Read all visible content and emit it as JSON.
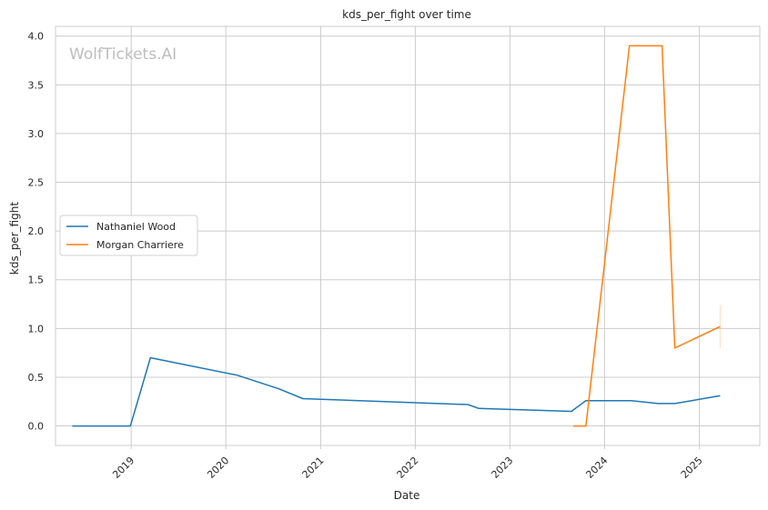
{
  "chart_data": {
    "type": "line",
    "title": "kds_per_fight over time",
    "xlabel": "Date",
    "ylabel": "kds_per_fight",
    "watermark": "WolfTickets.AI",
    "x_ticks": [
      "2019",
      "2020",
      "2021",
      "2022",
      "2023",
      "2024",
      "2025"
    ],
    "y_ticks": [
      "0.0",
      "0.5",
      "1.0",
      "1.5",
      "2.0",
      "2.5",
      "3.0",
      "3.5",
      "4.0"
    ],
    "xlim": [
      "2018-03-15",
      "2025-08-22"
    ],
    "ylim": [
      -0.2,
      4.1
    ],
    "grid": true,
    "legend_position": "center-left",
    "series": [
      {
        "name": "Nathaniel Wood",
        "color": "#1f77b4",
        "points": [
          {
            "x": "2018-05-19",
            "y": 0.0
          },
          {
            "x": "2018-12-29",
            "y": 0.0
          },
          {
            "x": "2019-03-16",
            "y": 0.7
          },
          {
            "x": "2020-02-15",
            "y": 0.52
          },
          {
            "x": "2020-07-25",
            "y": 0.38
          },
          {
            "x": "2020-10-24",
            "y": 0.28
          },
          {
            "x": "2022-07-23",
            "y": 0.22
          },
          {
            "x": "2022-09-03",
            "y": 0.18
          },
          {
            "x": "2023-08-26",
            "y": 0.15
          },
          {
            "x": "2023-10-21",
            "y": 0.26
          },
          {
            "x": "2024-04-13",
            "y": 0.26
          },
          {
            "x": "2024-07-27",
            "y": 0.23
          },
          {
            "x": "2024-09-28",
            "y": 0.23
          },
          {
            "x": "2025-03-22",
            "y": 0.31
          }
        ]
      },
      {
        "name": "Morgan Charriere",
        "color": "#ff7f0e",
        "points": [
          {
            "x": "2023-09-02",
            "y": 0.0
          },
          {
            "x": "2023-10-21",
            "y": 0.0
          },
          {
            "x": "2024-04-06",
            "y": 3.9
          },
          {
            "x": "2024-08-10",
            "y": 3.9
          },
          {
            "x": "2024-09-28",
            "y": 0.8
          },
          {
            "x": "2025-03-22",
            "y": 1.02
          }
        ]
      }
    ]
  }
}
